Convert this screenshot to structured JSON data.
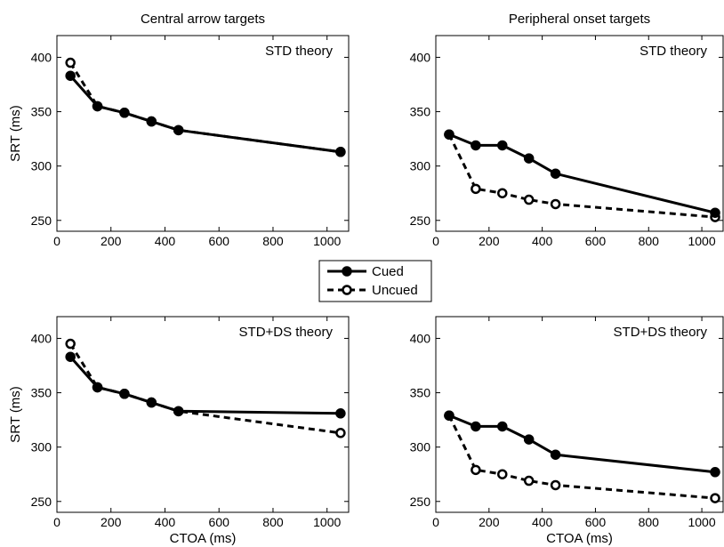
{
  "legend": {
    "placement": "center",
    "entries": [
      {
        "series": "cued",
        "label": "Cued",
        "line": "solid",
        "marker": "filled-circle"
      },
      {
        "series": "uncued",
        "label": "Uncued",
        "line": "dashed",
        "marker": "open-circle"
      }
    ]
  },
  "chart_data": [
    {
      "type": "line",
      "title": "Central arrow targets",
      "annotation": "STD theory",
      "xlabel": "",
      "ylabel": "SRT (ms)",
      "xlim": [
        0,
        1080
      ],
      "ylim": [
        240,
        420
      ],
      "xticks": [
        0,
        200,
        400,
        600,
        800,
        1000
      ],
      "yticks": [
        250,
        300,
        350,
        400
      ],
      "grid": false,
      "x": [
        50,
        150,
        250,
        350,
        450,
        1050
      ],
      "series": [
        {
          "name": "Cued",
          "values": [
            383,
            355,
            349,
            341,
            333,
            313
          ]
        },
        {
          "name": "Uncued",
          "values": [
            395,
            355,
            349,
            341,
            333,
            313
          ]
        }
      ]
    },
    {
      "type": "line",
      "title": "Peripheral onset targets",
      "annotation": "STD theory",
      "xlabel": "",
      "ylabel": "",
      "xlim": [
        0,
        1080
      ],
      "ylim": [
        240,
        420
      ],
      "xticks": [
        0,
        200,
        400,
        600,
        800,
        1000
      ],
      "yticks": [
        250,
        300,
        350,
        400
      ],
      "grid": false,
      "x": [
        50,
        150,
        250,
        350,
        450,
        1050
      ],
      "series": [
        {
          "name": "Cued",
          "values": [
            329,
            319,
            319,
            307,
            293,
            257
          ]
        },
        {
          "name": "Uncued",
          "values": [
            329,
            279,
            275,
            269,
            265,
            253
          ]
        }
      ]
    },
    {
      "type": "line",
      "title": "",
      "annotation": "STD+DS theory",
      "xlabel": "CTOA (ms)",
      "ylabel": "SRT (ms)",
      "xlim": [
        0,
        1080
      ],
      "ylim": [
        240,
        420
      ],
      "xticks": [
        0,
        200,
        400,
        600,
        800,
        1000
      ],
      "yticks": [
        250,
        300,
        350,
        400
      ],
      "grid": false,
      "x": [
        50,
        150,
        250,
        350,
        450,
        1050
      ],
      "series": [
        {
          "name": "Cued",
          "values": [
            383,
            355,
            349,
            341,
            333,
            331
          ]
        },
        {
          "name": "Uncued",
          "values": [
            395,
            355,
            349,
            341,
            333,
            313
          ]
        }
      ]
    },
    {
      "type": "line",
      "title": "",
      "annotation": "STD+DS theory",
      "xlabel": "CTOA (ms)",
      "ylabel": "",
      "xlim": [
        0,
        1080
      ],
      "ylim": [
        240,
        420
      ],
      "xticks": [
        0,
        200,
        400,
        600,
        800,
        1000
      ],
      "yticks": [
        250,
        300,
        350,
        400
      ],
      "grid": false,
      "x": [
        50,
        150,
        250,
        350,
        450,
        1050
      ],
      "series": [
        {
          "name": "Cued",
          "values": [
            329,
            319,
            319,
            307,
            293,
            277
          ]
        },
        {
          "name": "Uncued",
          "values": [
            329,
            279,
            275,
            269,
            265,
            253
          ]
        }
      ]
    }
  ]
}
